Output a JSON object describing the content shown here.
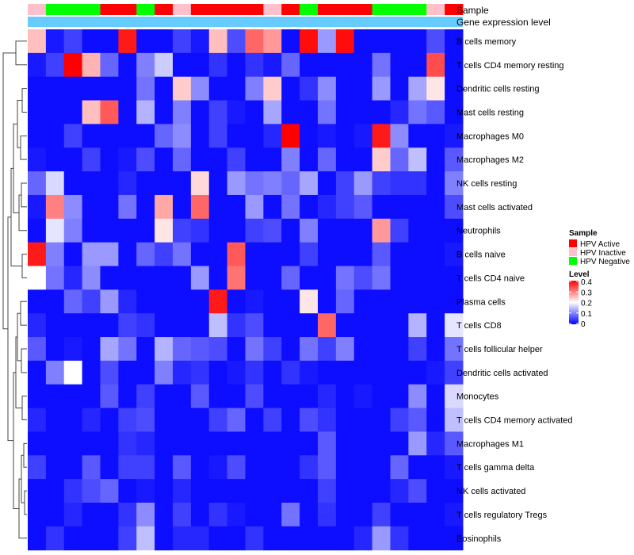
{
  "chart_data": {
    "type": "heatmap",
    "annotation_titles": {
      "sample": "Sample",
      "gene": "Gene expression level"
    },
    "column_samples": [
      "HPV Inactive",
      "HPV Negative",
      "HPV Negative",
      "HPV Negative",
      "HPV Active",
      "HPV Active",
      "HPV Negative",
      "HPV Active",
      "HPV Inactive",
      "HPV Active",
      "HPV Active",
      "HPV Active",
      "HPV Active",
      "HPV Inactive",
      "HPV Active",
      "HPV Negative",
      "HPV Active",
      "HPV Active",
      "HPV Active",
      "HPV Negative",
      "HPV Negative",
      "HPV Negative",
      "HPV Inactive",
      "HPV Active"
    ],
    "rows": [
      "B cells memory",
      "T cells CD4 memory resting",
      "Dendritic cells resting",
      "Mast cells resting",
      "Macrophages M0",
      "Macrophages M2",
      "NK cells resting",
      "Mast cells activated",
      "Neutrophils",
      "B cells naive",
      "T cells CD4 naive",
      "Plasma cells",
      "T cells CD8",
      "T cells follicular helper",
      "Dendritic cells activated",
      "Monocytes",
      "T cells CD4 memory activated",
      "Macrophages M1",
      "T cells gamma delta",
      "NK cells activated",
      "T cells regulatory  Tregs",
      "Eosinophils"
    ],
    "values": [
      [
        0.25,
        0.02,
        0.05,
        0.01,
        0.01,
        0.38,
        0.01,
        0.01,
        0.05,
        0.02,
        0.25,
        0.06,
        0.32,
        0.28,
        0.01,
        0.39,
        0.12,
        0.39,
        0.01,
        0.01,
        0.01,
        0.01,
        0.06,
        0.01
      ],
      [
        0.02,
        0.05,
        0.4,
        0.26,
        0.08,
        0.01,
        0.1,
        0.16,
        0.01,
        0.01,
        0.04,
        0.01,
        0.04,
        0.02,
        0.08,
        0.01,
        0.01,
        0.01,
        0.01,
        0.09,
        0.01,
        0.01,
        0.34,
        0.01
      ],
      [
        0.01,
        0.01,
        0.01,
        0.01,
        0.01,
        0.01,
        0.09,
        0.01,
        0.24,
        0.11,
        0.01,
        0.01,
        0.1,
        0.24,
        0.01,
        0.04,
        0.11,
        0.01,
        0.01,
        0.12,
        0.01,
        0.13,
        0.22,
        0.01
      ],
      [
        0.01,
        0.01,
        0.01,
        0.25,
        0.33,
        0.01,
        0.14,
        0.01,
        0.1,
        0.01,
        0.05,
        0.02,
        0.01,
        0.13,
        0.01,
        0.01,
        0.09,
        0.01,
        0.01,
        0.01,
        0.03,
        0.09,
        0.07,
        0.01
      ],
      [
        0.01,
        0.01,
        0.05,
        0.01,
        0.01,
        0.01,
        0.01,
        0.08,
        0.11,
        0.01,
        0.05,
        0.01,
        0.01,
        0.03,
        0.4,
        0.01,
        0.02,
        0.01,
        0.02,
        0.38,
        0.11,
        0.01,
        0.01,
        0.02
      ],
      [
        0.02,
        0.01,
        0.01,
        0.05,
        0.01,
        0.02,
        0.06,
        0.01,
        0.08,
        0.01,
        0.01,
        0.05,
        0.01,
        0.01,
        0.1,
        0.01,
        0.08,
        0.01,
        0.01,
        0.24,
        0.08,
        0.15,
        0.01,
        0.07
      ],
      [
        0.08,
        0.17,
        0.01,
        0.01,
        0.01,
        0.03,
        0.01,
        0.01,
        0.01,
        0.23,
        0.01,
        0.12,
        0.09,
        0.1,
        0.08,
        0.13,
        0.01,
        0.05,
        0.12,
        0.05,
        0.04,
        0.04,
        0.01,
        0.1
      ],
      [
        0.02,
        0.3,
        0.11,
        0.01,
        0.01,
        0.09,
        0.01,
        0.27,
        0.01,
        0.32,
        0.01,
        0.01,
        0.12,
        0.01,
        0.09,
        0.01,
        0.03,
        0.05,
        0.07,
        0.01,
        0.01,
        0.01,
        0.01,
        0.06
      ],
      [
        0.01,
        0.18,
        0.1,
        0.01,
        0.01,
        0.01,
        0.01,
        0.22,
        0.05,
        0.04,
        0.01,
        0.01,
        0.05,
        0.06,
        0.01,
        0.1,
        0.01,
        0.01,
        0.01,
        0.28,
        0.05,
        0.01,
        0.01,
        0.01
      ],
      [
        0.38,
        0.1,
        0.01,
        0.12,
        0.12,
        0.01,
        0.08,
        0.05,
        0.09,
        0.01,
        0.01,
        0.33,
        0.01,
        0.01,
        0.01,
        0.05,
        0.01,
        0.01,
        0.01,
        0.07,
        0.01,
        0.01,
        0.01,
        0.02
      ],
      [
        0.2,
        0.09,
        0.03,
        0.11,
        0.01,
        0.01,
        0.01,
        0.01,
        0.01,
        0.12,
        0.01,
        0.31,
        0.01,
        0.01,
        0.08,
        0.01,
        0.01,
        0.09,
        0.06,
        0.09,
        0.01,
        0.01,
        0.01,
        0.01
      ],
      [
        0.01,
        0.01,
        0.08,
        0.05,
        0.12,
        0.03,
        0.01,
        0.01,
        0.01,
        0.01,
        0.38,
        0.01,
        0.02,
        0.01,
        0.01,
        0.22,
        0.01,
        0.08,
        0.01,
        0.01,
        0.01,
        0.01,
        0.01,
        0.01
      ],
      [
        0.03,
        0.01,
        0.01,
        0.01,
        0.01,
        0.05,
        0.04,
        0.01,
        0.01,
        0.01,
        0.15,
        0.04,
        0.06,
        0.01,
        0.01,
        0.01,
        0.32,
        0.01,
        0.01,
        0.01,
        0.01,
        0.14,
        0.01,
        0.18
      ],
      [
        0.07,
        0.01,
        0.02,
        0.01,
        0.13,
        0.09,
        0.01,
        0.14,
        0.08,
        0.07,
        0.06,
        0.01,
        0.09,
        0.05,
        0.01,
        0.09,
        0.05,
        0.1,
        0.01,
        0.01,
        0.01,
        0.05,
        0.01,
        0.09
      ],
      [
        0.01,
        0.1,
        0.2,
        0.01,
        0.06,
        0.01,
        0.01,
        0.1,
        0.03,
        0.04,
        0.01,
        0.02,
        0.04,
        0.01,
        0.04,
        0.02,
        0.01,
        0.01,
        0.01,
        0.01,
        0.01,
        0.01,
        0.02,
        0.05
      ],
      [
        0.01,
        0.01,
        0.01,
        0.01,
        0.07,
        0.01,
        0.05,
        0.01,
        0.01,
        0.07,
        0.01,
        0.01,
        0.06,
        0.01,
        0.01,
        0.01,
        0.03,
        0.01,
        0.02,
        0.01,
        0.01,
        0.11,
        0.01,
        0.17
      ],
      [
        0.03,
        0.01,
        0.01,
        0.03,
        0.01,
        0.05,
        0.06,
        0.01,
        0.01,
        0.01,
        0.05,
        0.08,
        0.01,
        0.05,
        0.01,
        0.06,
        0.04,
        0.01,
        0.01,
        0.01,
        0.05,
        0.07,
        0.01,
        0.15
      ],
      [
        0.01,
        0.01,
        0.01,
        0.01,
        0.01,
        0.04,
        0.03,
        0.01,
        0.01,
        0.01,
        0.01,
        0.01,
        0.01,
        0.01,
        0.01,
        0.01,
        0.07,
        0.01,
        0.01,
        0.01,
        0.01,
        0.12,
        0.03,
        0.07
      ],
      [
        0.05,
        0.01,
        0.01,
        0.07,
        0.01,
        0.05,
        0.05,
        0.01,
        0.07,
        0.01,
        0.02,
        0.06,
        0.01,
        0.01,
        0.01,
        0.04,
        0.07,
        0.01,
        0.01,
        0.01,
        0.08,
        0.01,
        0.01,
        0.02
      ],
      [
        0.01,
        0.01,
        0.04,
        0.06,
        0.08,
        0.01,
        0.02,
        0.01,
        0.03,
        0.01,
        0.01,
        0.01,
        0.01,
        0.01,
        0.01,
        0.01,
        0.05,
        0.01,
        0.01,
        0.01,
        0.03,
        0.06,
        0.01,
        0.01
      ],
      [
        0.01,
        0.01,
        0.03,
        0.01,
        0.01,
        0.04,
        0.11,
        0.01,
        0.05,
        0.01,
        0.04,
        0.02,
        0.01,
        0.01,
        0.09,
        0.01,
        0.04,
        0.01,
        0.01,
        0.05,
        0.01,
        0.01,
        0.01,
        0.02
      ],
      [
        0.01,
        0.04,
        0.01,
        0.01,
        0.01,
        0.05,
        0.15,
        0.01,
        0.03,
        0.03,
        0.01,
        0.01,
        0.04,
        0.01,
        0.01,
        0.01,
        0.01,
        0.01,
        0.03,
        0.12,
        0.04,
        0.01,
        0.01,
        0.01
      ]
    ],
    "legend": {
      "sample": {
        "title": "Sample",
        "items": [
          {
            "label": "HPV Active",
            "color": "#ff0000"
          },
          {
            "label": "HPV Inactive",
            "color": "#ffc0cb"
          },
          {
            "label": "HPV Negative",
            "color": "#00ff00"
          }
        ]
      },
      "level": {
        "title": "Level",
        "ticks": [
          "0.4",
          "0.3",
          "0.2",
          "0.1",
          "0"
        ],
        "min": 0,
        "max": 0.4,
        "colors": {
          "low": "#0000ff",
          "mid": "#ffffff",
          "high": "#ff0000"
        }
      }
    },
    "gene_bar_color": "#66ccff"
  }
}
